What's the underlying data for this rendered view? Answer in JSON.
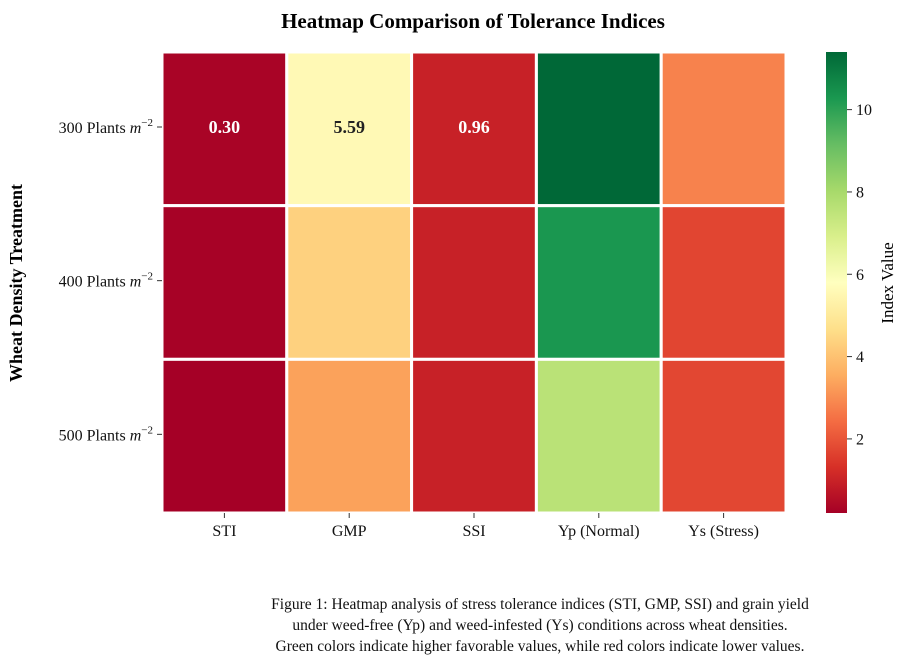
{
  "chart_data": {
    "type": "heatmap",
    "title": "Heatmap Comparison of Tolerance Indices",
    "xlabel": "",
    "ylabel": "Wheat Density Treatment",
    "columns": [
      "STI",
      "GMP",
      "SSI",
      "Yp (Normal)",
      "Ys (Stress)"
    ],
    "rows": [
      {
        "base": "300 Plants ",
        "unit": "m",
        "exp": "−2"
      },
      {
        "base": "400 Plants ",
        "unit": "m",
        "exp": "−2"
      },
      {
        "base": "500 Plants ",
        "unit": "m",
        "exp": "−2"
      }
    ],
    "values": [
      [
        0.3,
        5.59,
        0.96,
        11.4,
        2.8
      ],
      [
        0.24,
        4.35,
        0.96,
        10.3,
        1.7
      ],
      [
        0.2,
        3.35,
        0.96,
        7.6,
        1.75
      ]
    ],
    "annotations": [
      [
        "0.30",
        "5.59",
        "0.96",
        "",
        ""
      ],
      [
        "",
        "",
        "",
        "",
        ""
      ],
      [
        "",
        "",
        "",
        "",
        ""
      ]
    ],
    "colorbar": {
      "label": "Index Value",
      "min": 0.2,
      "max": 11.4,
      "ticks": [
        "2",
        "4",
        "6",
        "8",
        "10"
      ],
      "colormap": "RdYlGn"
    }
  },
  "caption": {
    "lines": [
      "Figure 1: Heatmap analysis of stress tolerance indices (STI, GMP, SSI) and grain yield",
      "under weed-free (Yp) and weed-infested (Ys) conditions across wheat densities.",
      "Green colors indicate higher favorable values, while red colors indicate lower values."
    ]
  }
}
